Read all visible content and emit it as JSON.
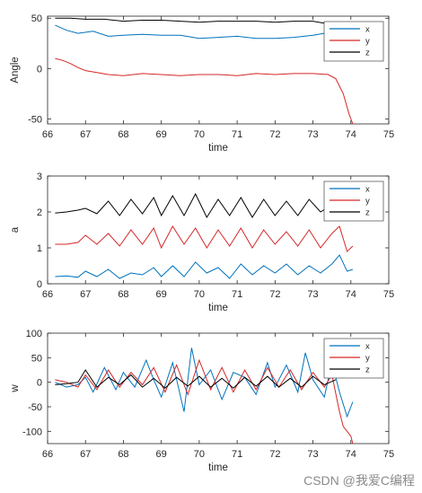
{
  "watermark": "CSDN @我爱C编程",
  "colors": {
    "x": "#0072BD",
    "y": "#D62728",
    "z": "#000000",
    "axis": "#262626"
  },
  "chart_data": [
    {
      "type": "line",
      "title": "",
      "xlabel": "time",
      "ylabel": "Angle",
      "xlim": [
        66,
        75
      ],
      "ylim": [
        -55,
        52
      ],
      "xticks": [
        66,
        67,
        68,
        69,
        70,
        71,
        72,
        73,
        74,
        75
      ],
      "yticks": [
        -50,
        0,
        50
      ],
      "legend": "top-right",
      "series": [
        {
          "name": "x",
          "x": [
            66.2,
            66.5,
            66.8,
            67.2,
            67.6,
            68.0,
            68.5,
            69.0,
            69.5,
            70.0,
            70.5,
            71.0,
            71.5,
            72.0,
            72.5,
            73.0,
            73.3,
            73.6
          ],
          "y": [
            43,
            38,
            35,
            37,
            32,
            33,
            34,
            33,
            33,
            30,
            31,
            32,
            30,
            30,
            31,
            33,
            35,
            37
          ]
        },
        {
          "name": "y",
          "x": [
            66.2,
            66.4,
            66.6,
            66.8,
            67.0,
            67.3,
            67.6,
            68.0,
            68.5,
            69.0,
            69.5,
            70.0,
            70.5,
            71.0,
            71.5,
            72.0,
            72.5,
            73.0,
            73.4,
            73.6,
            73.8,
            73.95,
            74.05
          ],
          "y": [
            10,
            8,
            5,
            1,
            -2,
            -4,
            -6,
            -7,
            -5,
            -6,
            -7,
            -6,
            -6,
            -7,
            -5,
            -6,
            -5,
            -5,
            -6,
            -10,
            -25,
            -45,
            -55
          ]
        },
        {
          "name": "z",
          "x": [
            66.2,
            66.6,
            67.0,
            67.5,
            68.0,
            68.5,
            69.0,
            69.5,
            70.0,
            70.5,
            71.0,
            71.5,
            72.0,
            72.5,
            73.0,
            73.3,
            73.6
          ],
          "y": [
            50,
            50,
            49,
            49,
            47,
            48,
            48,
            47,
            46,
            47,
            47,
            47,
            46,
            47,
            47,
            45,
            46
          ]
        }
      ]
    },
    {
      "type": "line",
      "title": "",
      "xlabel": "time",
      "ylabel": "a",
      "xlim": [
        66,
        75
      ],
      "ylim": [
        0,
        3
      ],
      "xticks": [
        66,
        67,
        68,
        69,
        70,
        71,
        72,
        73,
        74,
        75
      ],
      "yticks": [
        0,
        1,
        2,
        3
      ],
      "legend": "top-right",
      "series": [
        {
          "name": "x",
          "x": [
            66.2,
            66.5,
            66.8,
            67.0,
            67.3,
            67.6,
            67.9,
            68.2,
            68.5,
            68.8,
            69.0,
            69.3,
            69.6,
            69.9,
            70.2,
            70.5,
            70.8,
            71.1,
            71.4,
            71.7,
            72.0,
            72.3,
            72.6,
            72.9,
            73.2,
            73.5,
            73.7,
            73.9,
            74.05
          ],
          "y": [
            0.2,
            0.22,
            0.18,
            0.35,
            0.2,
            0.4,
            0.15,
            0.3,
            0.25,
            0.45,
            0.2,
            0.5,
            0.2,
            0.6,
            0.3,
            0.45,
            0.15,
            0.55,
            0.25,
            0.5,
            0.3,
            0.55,
            0.25,
            0.5,
            0.3,
            0.55,
            0.8,
            0.35,
            0.4
          ]
        },
        {
          "name": "y",
          "x": [
            66.2,
            66.5,
            66.8,
            67.0,
            67.3,
            67.6,
            67.9,
            68.2,
            68.5,
            68.8,
            69.0,
            69.3,
            69.6,
            69.9,
            70.2,
            70.5,
            70.8,
            71.1,
            71.4,
            71.7,
            72.0,
            72.3,
            72.6,
            72.9,
            73.2,
            73.5,
            73.7,
            73.9,
            74.05
          ],
          "y": [
            1.1,
            1.1,
            1.15,
            1.35,
            1.1,
            1.4,
            1.05,
            1.5,
            1.1,
            1.55,
            1.0,
            1.6,
            1.1,
            1.55,
            1.0,
            1.5,
            1.05,
            1.55,
            1.0,
            1.5,
            1.1,
            1.45,
            1.05,
            1.5,
            1.0,
            1.4,
            1.6,
            0.9,
            1.05
          ]
        },
        {
          "name": "z",
          "x": [
            66.2,
            66.5,
            66.8,
            67.0,
            67.3,
            67.6,
            67.9,
            68.2,
            68.5,
            68.8,
            69.0,
            69.3,
            69.6,
            69.9,
            70.2,
            70.5,
            70.8,
            71.1,
            71.4,
            71.7,
            72.0,
            72.3,
            72.6,
            72.9,
            73.2,
            73.5,
            73.6
          ],
          "y": [
            1.97,
            2.0,
            2.05,
            2.1,
            1.95,
            2.3,
            1.9,
            2.35,
            1.95,
            2.4,
            1.9,
            2.45,
            1.9,
            2.5,
            1.85,
            2.35,
            1.9,
            2.4,
            1.85,
            2.35,
            1.9,
            2.3,
            1.9,
            2.35,
            2.0,
            2.2,
            2.1
          ]
        }
      ]
    },
    {
      "type": "line",
      "title": "",
      "xlabel": "time",
      "ylabel": "w",
      "xlim": [
        66,
        75
      ],
      "ylim": [
        -125,
        100
      ],
      "xticks": [
        66,
        67,
        68,
        69,
        70,
        71,
        72,
        73,
        74,
        75
      ],
      "yticks": [
        -100,
        -50,
        0,
        50,
        100
      ],
      "legend": "top-right",
      "series": [
        {
          "name": "x",
          "x": [
            66.2,
            66.5,
            66.8,
            67.0,
            67.2,
            67.5,
            67.8,
            68.0,
            68.3,
            68.6,
            68.8,
            69.0,
            69.3,
            69.6,
            69.8,
            70.0,
            70.3,
            70.6,
            70.9,
            71.2,
            71.5,
            71.8,
            72.0,
            72.3,
            72.6,
            72.8,
            73.0,
            73.3,
            73.5,
            73.7,
            73.9,
            74.05
          ],
          "y": [
            0,
            -10,
            -5,
            10,
            -20,
            30,
            -15,
            20,
            -10,
            45,
            5,
            -30,
            40,
            -60,
            70,
            -5,
            25,
            -35,
            20,
            10,
            -25,
            40,
            -10,
            35,
            -20,
            60,
            5,
            -30,
            40,
            -20,
            -70,
            -40
          ]
        },
        {
          "name": "y",
          "x": [
            66.2,
            66.5,
            66.8,
            67.0,
            67.3,
            67.6,
            67.9,
            68.2,
            68.5,
            68.8,
            69.1,
            69.4,
            69.7,
            70.0,
            70.3,
            70.6,
            70.9,
            71.2,
            71.5,
            71.8,
            72.1,
            72.4,
            72.7,
            73.0,
            73.3,
            73.5,
            73.7,
            73.8,
            73.9,
            74.0,
            74.05
          ],
          "y": [
            5,
            0,
            -10,
            15,
            -15,
            25,
            -10,
            20,
            -5,
            30,
            -20,
            35,
            -25,
            45,
            -15,
            30,
            -20,
            25,
            -15,
            30,
            -10,
            25,
            -15,
            20,
            -10,
            15,
            -60,
            -90,
            -100,
            -110,
            -125
          ]
        },
        {
          "name": "z",
          "x": [
            66.2,
            66.5,
            66.8,
            67.0,
            67.3,
            67.6,
            67.9,
            68.2,
            68.5,
            68.8,
            69.1,
            69.4,
            69.7,
            70.0,
            70.3,
            70.6,
            70.9,
            71.2,
            71.5,
            71.8,
            72.1,
            72.4,
            72.7,
            73.0,
            73.3,
            73.6
          ],
          "y": [
            -5,
            -3,
            0,
            25,
            -10,
            10,
            -5,
            15,
            -10,
            8,
            -12,
            10,
            -8,
            12,
            -10,
            8,
            -12,
            10,
            -8,
            12,
            -10,
            8,
            -10,
            12,
            -5,
            5
          ]
        }
      ]
    }
  ]
}
